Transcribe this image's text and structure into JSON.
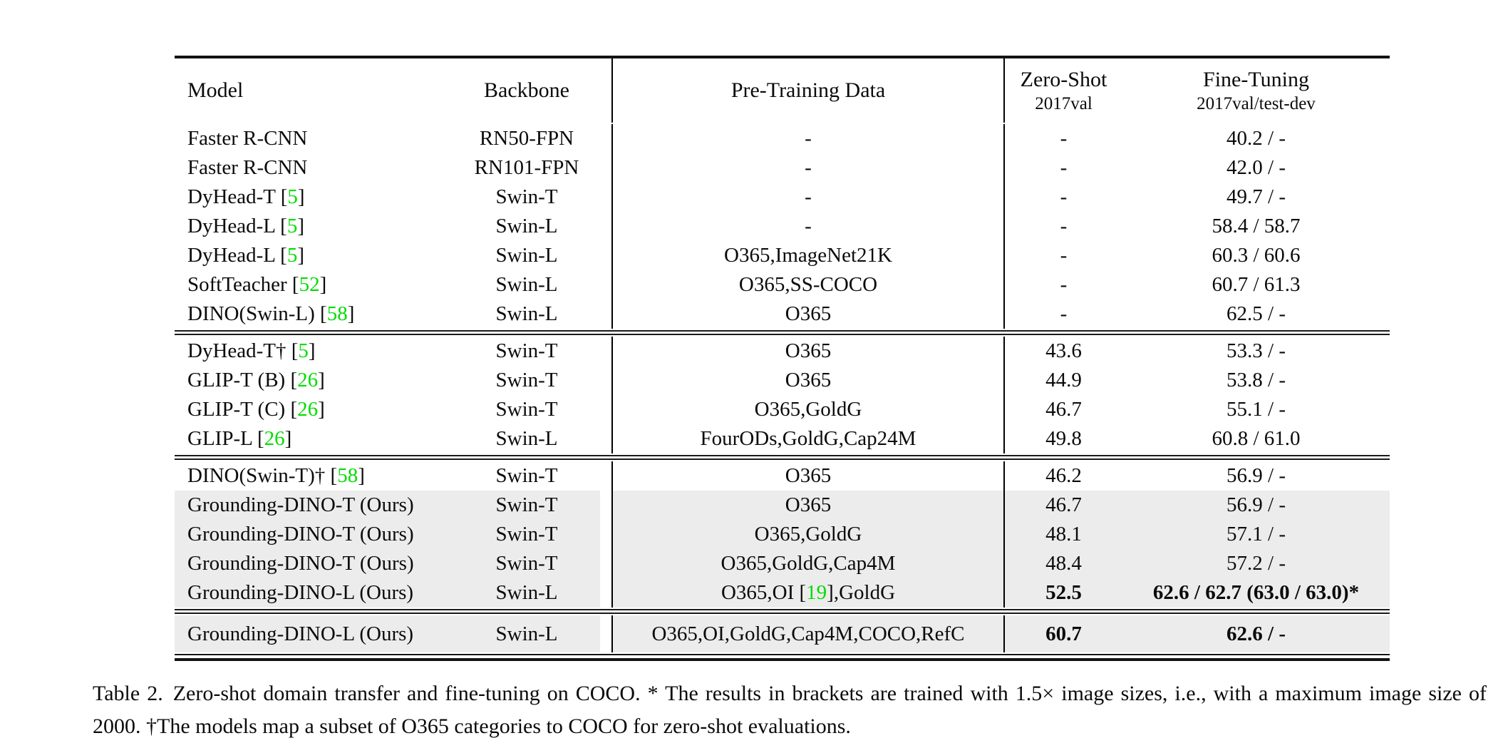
{
  "colors": {
    "citation_green": "#00dd00",
    "highlight_row_bg": "#ececec",
    "rule_black": "#131313"
  },
  "table": {
    "header": {
      "model": "Model",
      "backbone": "Backbone",
      "pretrain": "Pre-Training Data",
      "zero_shot": "Zero-Shot",
      "zero_shot_sub": "2017val",
      "fine_tuning": "Fine-Tuning",
      "fine_tuning_sub": "2017val/test-dev"
    },
    "groups": [
      {
        "rows": [
          {
            "model": "Faster R-CNN",
            "backbone": "RN50-FPN",
            "pretrain": "-",
            "zs": "-",
            "ft": "40.2 / -",
            "highlight": false,
            "bold": false
          },
          {
            "model": "Faster R-CNN",
            "backbone": "RN101-FPN",
            "pretrain": "-",
            "zs": "-",
            "ft": "42.0 / -",
            "highlight": false,
            "bold": false
          },
          {
            "model": "DyHead-T [5]",
            "backbone": "Swin-T",
            "pretrain": "-",
            "zs": "-",
            "ft": "49.7 / -",
            "highlight": false,
            "bold": false
          },
          {
            "model": "DyHead-L [5]",
            "backbone": "Swin-L",
            "pretrain": "-",
            "zs": "-",
            "ft": "58.4 / 58.7",
            "highlight": false,
            "bold": false
          },
          {
            "model": "DyHead-L [5]",
            "backbone": "Swin-L",
            "pretrain": "O365,ImageNet21K",
            "zs": "-",
            "ft": "60.3 / 60.6",
            "highlight": false,
            "bold": false
          },
          {
            "model": "SoftTeacher [52]",
            "backbone": "Swin-L",
            "pretrain": "O365,SS-COCO",
            "zs": "-",
            "ft": "60.7 / 61.3",
            "highlight": false,
            "bold": false
          },
          {
            "model": "DINO(Swin-L) [58]",
            "backbone": "Swin-L",
            "pretrain": "O365",
            "zs": "-",
            "ft": "62.5 / -",
            "highlight": false,
            "bold": false
          }
        ]
      },
      {
        "rows": [
          {
            "model": "DyHead-T† [5]",
            "backbone": "Swin-T",
            "pretrain": "O365",
            "zs": "43.6",
            "ft": "53.3 / -",
            "highlight": false,
            "bold": false
          },
          {
            "model": "GLIP-T (B) [26]",
            "backbone": "Swin-T",
            "pretrain": "O365",
            "zs": "44.9",
            "ft": "53.8 / -",
            "highlight": false,
            "bold": false
          },
          {
            "model": "GLIP-T (C) [26]",
            "backbone": "Swin-T",
            "pretrain": "O365,GoldG",
            "zs": "46.7",
            "ft": "55.1 / -",
            "highlight": false,
            "bold": false
          },
          {
            "model": "GLIP-L [26]",
            "backbone": "Swin-L",
            "pretrain": "FourODs,GoldG,Cap24M",
            "zs": "49.8",
            "ft": "60.8 / 61.0",
            "highlight": false,
            "bold": false
          }
        ]
      },
      {
        "rows": [
          {
            "model": "DINO(Swin-T)† [58]",
            "backbone": "Swin-T",
            "pretrain": "O365",
            "zs": "46.2",
            "ft": "56.9 / -",
            "highlight": false,
            "bold": false
          },
          {
            "model": "Grounding-DINO-T (Ours)",
            "backbone": "Swin-T",
            "pretrain": "O365",
            "zs": "46.7",
            "ft": "56.9 / -",
            "highlight": true,
            "bold": false
          },
          {
            "model": "Grounding-DINO-T (Ours)",
            "backbone": "Swin-T",
            "pretrain": "O365,GoldG",
            "zs": "48.1",
            "ft": "57.1 / -",
            "highlight": true,
            "bold": false
          },
          {
            "model": "Grounding-DINO-T (Ours)",
            "backbone": "Swin-T",
            "pretrain": "O365,GoldG,Cap4M",
            "zs": "48.4",
            "ft": "57.2 / -",
            "highlight": true,
            "bold": false
          },
          {
            "model": "Grounding-DINO-L (Ours)",
            "backbone": "Swin-L",
            "pretrain": "O365,OI [19],GoldG",
            "zs": "52.5",
            "ft": "62.6 / 62.7 (63.0 / 63.0)*",
            "highlight": true,
            "bold": true
          }
        ]
      },
      {
        "rows": [
          {
            "model": "Grounding-DINO-L (Ours)",
            "backbone": "Swin-L",
            "pretrain": "O365,OI,GoldG,Cap4M,COCO,RefC",
            "zs": "60.7",
            "ft": "62.6 / -",
            "highlight": true,
            "bold": true,
            "tall": true
          }
        ]
      }
    ]
  },
  "caption": {
    "label": "Table 2.",
    "text": "Zero-shot domain transfer and fine-tuning on COCO. * The results in brackets are trained with 1.5× image sizes, i.e., with a maximum image size of 2000. †The models map a subset of O365 categories to COCO for zero-shot evaluations."
  }
}
